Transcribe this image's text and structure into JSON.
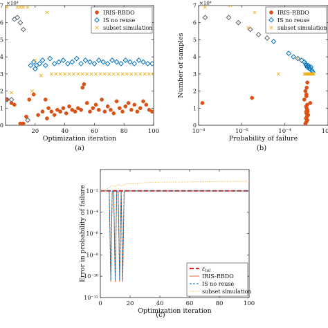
{
  "colors": {
    "iris": "#d95319",
    "is_no_reuse": "#0072bd",
    "subset": "#edb120",
    "tol": "#e0202a",
    "diamond": "#5b6470"
  },
  "chart_data": [
    {
      "id": "a",
      "type": "scatter",
      "panel_label": "(a)",
      "xlabel": "Optimization iteration",
      "ylabel": "",
      "exponent_label": "×10⁴",
      "xlim": [
        0,
        100
      ],
      "ylim": [
        0,
        7
      ],
      "xticks": [
        20,
        40,
        60,
        80,
        100
      ],
      "xtick_labels": [
        "20",
        "40",
        "60",
        "80",
        "100"
      ],
      "yticks": [
        0,
        1,
        2,
        3,
        4,
        5,
        6,
        7
      ],
      "ytick_labels": [
        "0",
        "1",
        "2",
        "3",
        "4",
        "5",
        "6",
        "7"
      ],
      "legend": {
        "position": "top-right",
        "entries": [
          "IRIS-RBDO",
          "IS no reuse",
          "subset simulation"
        ]
      },
      "series": [
        {
          "name": "IRIS-RBDO",
          "marker": "circle",
          "x": [
            1,
            4,
            6,
            10,
            12,
            14,
            16,
            19,
            22,
            25,
            27,
            28,
            29,
            31,
            33,
            35,
            37,
            39,
            41,
            43,
            45,
            47,
            49,
            51,
            52,
            53,
            55,
            57,
            59,
            61,
            63,
            65,
            67,
            69,
            71,
            73,
            75,
            77,
            79,
            81,
            83,
            85,
            87,
            89,
            91,
            93,
            95,
            97,
            99
          ],
          "y": [
            1.5,
            1.3,
            1.2,
            0.1,
            0.1,
            0.5,
            1.5,
            1.8,
            0.6,
            0.8,
            1.5,
            0.4,
            1.0,
            0.8,
            0.6,
            0.9,
            0.8,
            1.0,
            0.7,
            1.1,
            0.9,
            0.8,
            1.0,
            0.9,
            2.2,
            2.4,
            1.3,
            0.8,
            1.0,
            1.2,
            0.9,
            1.5,
            0.8,
            1.1,
            0.9,
            0.7,
            1.4,
            1.0,
            0.8,
            1.1,
            1.3,
            0.9,
            1.2,
            0.8,
            1.0,
            1.4,
            1.2,
            0.9,
            0.8
          ]
        },
        {
          "name": "IS no reuse",
          "marker": "diamond-open",
          "x": [
            1,
            4,
            6,
            8,
            10,
            12,
            15,
            17,
            19,
            20,
            21,
            23,
            25,
            27,
            30,
            33,
            36,
            39,
            42,
            45,
            48,
            51,
            54,
            57,
            60,
            63,
            66,
            69,
            72,
            75,
            78,
            81,
            84,
            87,
            90,
            93,
            96,
            99
          ],
          "y": [
            1.5,
            1.5,
            6.2,
            6.3,
            6.0,
            5.6,
            0.3,
            3.5,
            3.7,
            3.3,
            3.5,
            3.6,
            3.8,
            3.5,
            3.9,
            3.6,
            3.7,
            3.8,
            3.6,
            3.7,
            3.9,
            3.6,
            3.8,
            3.7,
            3.6,
            3.8,
            3.7,
            3.6,
            3.8,
            3.7,
            3.6,
            3.8,
            3.7,
            3.6,
            3.8,
            3.7,
            3.6,
            3.6
          ]
        },
        {
          "name": "subset simulation",
          "marker": "x",
          "x": [
            1,
            4,
            8,
            10,
            12,
            15,
            18,
            20,
            24,
            28,
            31,
            34,
            37,
            40,
            43,
            46,
            49,
            52,
            55,
            58,
            61,
            64,
            67,
            70,
            73,
            76,
            79,
            82,
            85,
            88,
            91,
            94,
            97,
            100
          ],
          "y": [
            6.9,
            1.9,
            6.9,
            6.9,
            6.9,
            6.9,
            2.0,
            3.8,
            2.9,
            6.6,
            3.0,
            3.0,
            3.0,
            3.0,
            3.0,
            3.0,
            3.0,
            3.0,
            3.0,
            3.0,
            3.0,
            3.0,
            3.0,
            3.0,
            3.0,
            3.0,
            3.0,
            3.0,
            3.0,
            3.0,
            3.0,
            3.0,
            3.0,
            3.0
          ]
        }
      ]
    },
    {
      "id": "b",
      "type": "scatter",
      "panel_label": "(b)",
      "xlabel": "Probability of failure",
      "ylabel": "Number of samples",
      "exponent_label": "×10⁴",
      "xscale": "log",
      "xlim": [
        1e-08,
        0.01
      ],
      "ylim": [
        0,
        7
      ],
      "xticks": [
        1e-08,
        1e-06,
        0.0001,
        0.01
      ],
      "xtick_labels": [
        "10⁻⁸",
        "10⁻⁶",
        "10⁻⁴",
        "10⁻²"
      ],
      "yticks": [
        0,
        1,
        2,
        3,
        4,
        5,
        6,
        7
      ],
      "ytick_labels": [
        "0",
        "1",
        "2",
        "3",
        "4",
        "5",
        "6",
        "7"
      ],
      "legend": {
        "position": "top-right",
        "entries": [
          "IRIS-RBDO",
          "IS no reuse",
          "subset simulation"
        ]
      },
      "series": [
        {
          "name": "IRIS-RBDO",
          "marker": "circle",
          "x": [
            1.5e-08,
            3e-06,
            0.0009,
            0.001,
            0.0011,
            0.00095,
            0.00105,
            0.0012,
            0.001,
            0.00098,
            0.0011,
            0.00102,
            0.00097,
            0.00108,
            0.0015,
            0.0008,
            0.001,
            0.00103,
            0.0011,
            0.001,
            0.0009,
            0.00112
          ],
          "y": [
            1.3,
            1.6,
            0.1,
            0.2,
            0.3,
            0.4,
            0.5,
            0.6,
            0.7,
            0.8,
            0.9,
            1.0,
            1.1,
            1.2,
            1.3,
            1.5,
            1.8,
            2.2,
            2.5,
            1.7,
            2.0,
            0.8
          ]
        },
        {
          "name": "IS no reuse",
          "marker": "diamond-open",
          "x": [
            2e-08,
            2.5e-07,
            7e-07,
            2.5e-06,
            6e-06,
            1.5e-05,
            3e-05,
            0.00015,
            0.00025,
            0.0004,
            0.0006,
            0.0008,
            0.0009,
            0.001,
            0.0011,
            0.0013,
            0.0015,
            0.0018,
            0.002,
            0.0012,
            0.0014,
            0.0016
          ],
          "y": [
            6.3,
            6.3,
            6.0,
            5.6,
            5.3,
            5.1,
            4.9,
            4.2,
            4.0,
            3.9,
            3.8,
            3.7,
            3.6,
            3.5,
            3.4,
            3.4,
            3.3,
            3.2,
            3.1,
            3.5,
            3.3,
            3.4
          ]
        },
        {
          "name": "subset simulation",
          "marker": "x",
          "x": [
            2e-08,
            3e-07,
            2e-06,
            4e-06,
            5e-05,
            0.0004,
            0.0008,
            0.001,
            0.0012,
            0.0014,
            0.0016,
            0.0018,
            0.002,
            0.0022,
            0.0009,
            0.0011,
            0.0013,
            0.0015,
            0.0017,
            0.0019
          ],
          "y": [
            6.9,
            7.0,
            5.7,
            6.6,
            3.0,
            3.9,
            3.0,
            3.0,
            3.0,
            3.0,
            3.0,
            3.0,
            3.0,
            3.0,
            3.0,
            3.0,
            3.0,
            3.0,
            3.0,
            3.0
          ]
        }
      ]
    },
    {
      "id": "c",
      "type": "line",
      "panel_label": "(c)",
      "xlabel": "Optimization iteration",
      "ylabel": "Error in probability of failure",
      "yscale": "log",
      "xlim": [
        0,
        100
      ],
      "ylim": [
        1e-12,
        1
      ],
      "xticks": [
        0,
        20,
        40,
        60,
        80,
        100
      ],
      "xtick_labels": [
        "0",
        "20",
        "40",
        "60",
        "80",
        "100"
      ],
      "yticks": [
        0.01,
        0.0001,
        1e-06,
        1e-08,
        1e-10,
        1e-12
      ],
      "ytick_labels": [
        "10⁻²",
        "10⁻⁴",
        "10⁻⁶",
        "10⁻⁸",
        "10⁻¹⁰",
        "10⁻¹²"
      ],
      "legend": {
        "position": "bottom-right",
        "entries": [
          "ε_tol",
          "IRIS-RBDO",
          "IS no reuse",
          "subset simulation"
        ]
      },
      "series": [
        {
          "name": "ε_tol",
          "style": "dashed-thick",
          "x": [
            0,
            100
          ],
          "y": [
            0.01,
            0.01
          ]
        },
        {
          "name": "IRIS-RBDO",
          "style": "solid",
          "x": [
            0,
            5,
            6,
            7,
            8,
            9,
            10,
            11,
            12,
            13,
            14,
            15,
            16,
            17,
            100
          ],
          "y": [
            0.01,
            0.01,
            0.01,
            3e-11,
            0.01,
            0.01,
            3e-11,
            0.01,
            0.01,
            3e-11,
            0.01,
            3e-11,
            0.01,
            0.01,
            0.01
          ]
        },
        {
          "name": "IS no reuse",
          "style": "dashed",
          "x": [
            0,
            5,
            6,
            7,
            8,
            9,
            10,
            11,
            12,
            13,
            14,
            15,
            16,
            17,
            100
          ],
          "y": [
            0.01,
            0.01,
            0.01,
            4e-11,
            0.01,
            0.01,
            4e-11,
            0.01,
            0.01,
            4e-11,
            0.01,
            4e-11,
            0.01,
            0.01,
            0.01
          ]
        },
        {
          "name": "subset simulation",
          "style": "dotted",
          "x": [
            0,
            3,
            6,
            8,
            10,
            12,
            14,
            16,
            18,
            20,
            25,
            30,
            40,
            60,
            80,
            100
          ],
          "y": [
            0.01,
            0.012,
            0.02,
            0.03,
            0.025,
            0.04,
            0.03,
            0.035,
            0.05,
            0.045,
            0.05,
            0.06,
            0.065,
            0.07,
            0.075,
            0.08
          ]
        }
      ]
    }
  ]
}
